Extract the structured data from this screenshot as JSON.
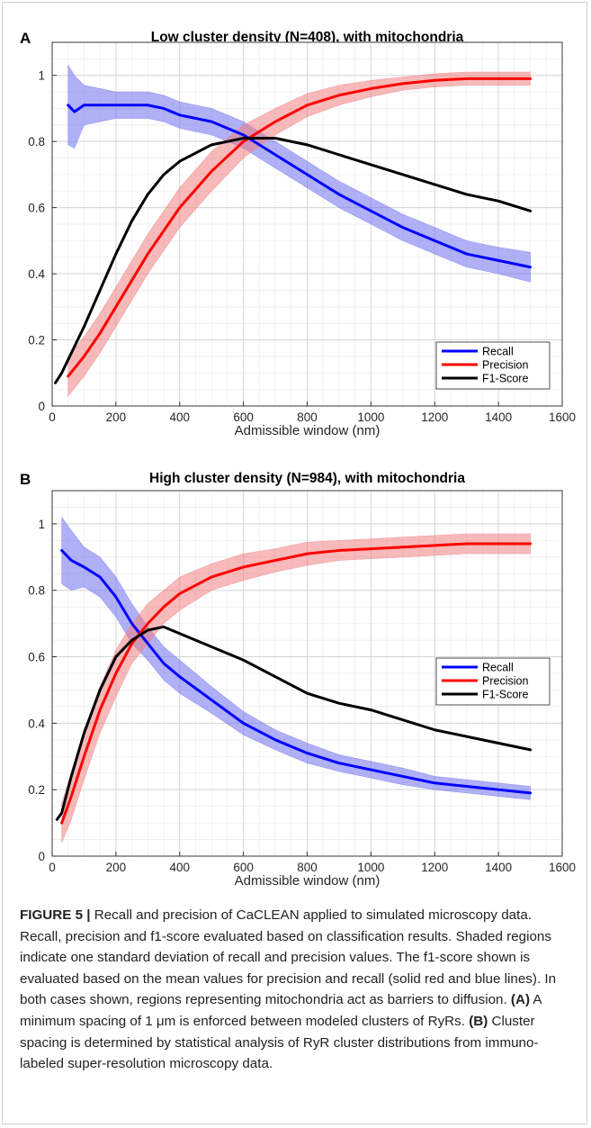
{
  "chart_data": [
    {
      "panel_label": "A",
      "type": "line",
      "title": "Low cluster density (N=408), with mitochondria",
      "xlabel": "Admissible window (nm)",
      "ylabel": "",
      "xlim": [
        0,
        1600
      ],
      "ylim": [
        0,
        1.1
      ],
      "xticks": [
        0,
        200,
        400,
        600,
        800,
        1000,
        1200,
        1400,
        1600
      ],
      "yticks": [
        0,
        0.2,
        0.4,
        0.6,
        0.8,
        1
      ],
      "grid": true,
      "minor_grid": true,
      "legend_position": "bottom-right",
      "series": [
        {
          "name": "Recall",
          "color": "#0000ff",
          "band_color": "#7070f0",
          "x": [
            50,
            70,
            100,
            150,
            200,
            250,
            300,
            350,
            400,
            500,
            600,
            700,
            800,
            900,
            1000,
            1100,
            1200,
            1300,
            1400,
            1500
          ],
          "y": [
            0.91,
            0.89,
            0.91,
            0.91,
            0.91,
            0.91,
            0.91,
            0.9,
            0.88,
            0.86,
            0.82,
            0.76,
            0.7,
            0.64,
            0.59,
            0.54,
            0.5,
            0.46,
            0.44,
            0.42
          ],
          "sd": [
            0.12,
            0.11,
            0.06,
            0.05,
            0.04,
            0.04,
            0.04,
            0.04,
            0.04,
            0.04,
            0.04,
            0.04,
            0.04,
            0.04,
            0.04,
            0.04,
            0.04,
            0.04,
            0.04,
            0.045
          ]
        },
        {
          "name": "Precision",
          "color": "#ff0000",
          "band_color": "#f08080",
          "x": [
            50,
            100,
            150,
            200,
            250,
            300,
            350,
            400,
            500,
            600,
            700,
            800,
            900,
            1000,
            1100,
            1200,
            1300,
            1400,
            1500
          ],
          "y": [
            0.09,
            0.15,
            0.22,
            0.3,
            0.38,
            0.46,
            0.53,
            0.6,
            0.71,
            0.8,
            0.86,
            0.91,
            0.94,
            0.96,
            0.975,
            0.985,
            0.99,
            0.99,
            0.99
          ],
          "sd": [
            0.06,
            0.06,
            0.06,
            0.06,
            0.06,
            0.06,
            0.06,
            0.06,
            0.06,
            0.05,
            0.04,
            0.035,
            0.03,
            0.025,
            0.02,
            0.02,
            0.02,
            0.02,
            0.02
          ]
        },
        {
          "name": "F1-Score",
          "color": "#000000",
          "x": [
            10,
            30,
            50,
            100,
            150,
            200,
            250,
            300,
            350,
            400,
            500,
            600,
            700,
            800,
            900,
            1000,
            1100,
            1200,
            1300,
            1400,
            1500
          ],
          "y": [
            0.07,
            0.1,
            0.14,
            0.24,
            0.35,
            0.46,
            0.56,
            0.64,
            0.7,
            0.74,
            0.79,
            0.81,
            0.81,
            0.79,
            0.76,
            0.73,
            0.7,
            0.67,
            0.64,
            0.62,
            0.59
          ]
        }
      ]
    },
    {
      "panel_label": "B",
      "type": "line",
      "title": "High cluster density (N=984), with mitochondria",
      "xlabel": "Admissible window (nm)",
      "ylabel": "",
      "xlim": [
        0,
        1600
      ],
      "ylim": [
        0,
        1.1
      ],
      "xticks": [
        0,
        200,
        400,
        600,
        800,
        1000,
        1200,
        1400,
        1600
      ],
      "yticks": [
        0,
        0.2,
        0.4,
        0.6,
        0.8,
        1
      ],
      "grid": true,
      "minor_grid": true,
      "legend_position": "top-right",
      "series": [
        {
          "name": "Recall",
          "color": "#0000ff",
          "band_color": "#7070f0",
          "x": [
            30,
            60,
            100,
            150,
            200,
            250,
            300,
            350,
            400,
            500,
            600,
            700,
            800,
            900,
            1000,
            1100,
            1200,
            1300,
            1400,
            1500
          ],
          "y": [
            0.92,
            0.89,
            0.87,
            0.84,
            0.78,
            0.7,
            0.64,
            0.58,
            0.54,
            0.47,
            0.4,
            0.35,
            0.31,
            0.28,
            0.26,
            0.24,
            0.22,
            0.21,
            0.2,
            0.19
          ],
          "sd": [
            0.1,
            0.09,
            0.06,
            0.06,
            0.06,
            0.06,
            0.05,
            0.05,
            0.05,
            0.04,
            0.035,
            0.03,
            0.03,
            0.025,
            0.025,
            0.025,
            0.02,
            0.02,
            0.02,
            0.02
          ]
        },
        {
          "name": "Precision",
          "color": "#ff0000",
          "band_color": "#f08080",
          "x": [
            30,
            60,
            100,
            150,
            200,
            250,
            300,
            350,
            400,
            500,
            600,
            700,
            800,
            900,
            1000,
            1100,
            1200,
            1300,
            1400,
            1500
          ],
          "y": [
            0.1,
            0.18,
            0.3,
            0.44,
            0.55,
            0.64,
            0.7,
            0.75,
            0.79,
            0.84,
            0.87,
            0.89,
            0.91,
            0.92,
            0.925,
            0.93,
            0.935,
            0.94,
            0.94,
            0.94
          ],
          "sd": [
            0.06,
            0.07,
            0.07,
            0.07,
            0.07,
            0.06,
            0.06,
            0.05,
            0.05,
            0.04,
            0.04,
            0.035,
            0.035,
            0.03,
            0.03,
            0.03,
            0.03,
            0.03,
            0.03,
            0.03
          ]
        },
        {
          "name": "F1-Score",
          "color": "#000000",
          "x": [
            15,
            30,
            60,
            100,
            150,
            200,
            250,
            300,
            350,
            400,
            500,
            600,
            700,
            800,
            900,
            1000,
            1100,
            1200,
            1300,
            1400,
            1500
          ],
          "y": [
            0.11,
            0.13,
            0.24,
            0.37,
            0.5,
            0.6,
            0.65,
            0.68,
            0.69,
            0.67,
            0.63,
            0.59,
            0.54,
            0.49,
            0.46,
            0.44,
            0.41,
            0.38,
            0.36,
            0.34,
            0.32
          ]
        }
      ]
    }
  ],
  "caption": {
    "label": "FIGURE 5 |",
    "segments": [
      {
        "text": " Recall and precision of CaCLEAN applied to simulated microscopy data. Recall, precision and f1-score evaluated based on classification results. Shaded regions indicate one standard deviation of recall and precision values. The f1-score shown is evaluated based on the mean values for precision and recall (solid red and blue lines). In both cases shown, regions representing mitochondria act as barriers to diffusion. ",
        "bold": false
      },
      {
        "text": "(A)",
        "bold": true
      },
      {
        "text": " A minimum spacing of 1 μm is enforced between modeled clusters of RyRs. ",
        "bold": false
      },
      {
        "text": "(B)",
        "bold": true
      },
      {
        "text": " Cluster spacing is determined by statistical analysis of RyR cluster distributions from immuno-labeled super-resolution microscopy data.",
        "bold": false
      }
    ]
  }
}
